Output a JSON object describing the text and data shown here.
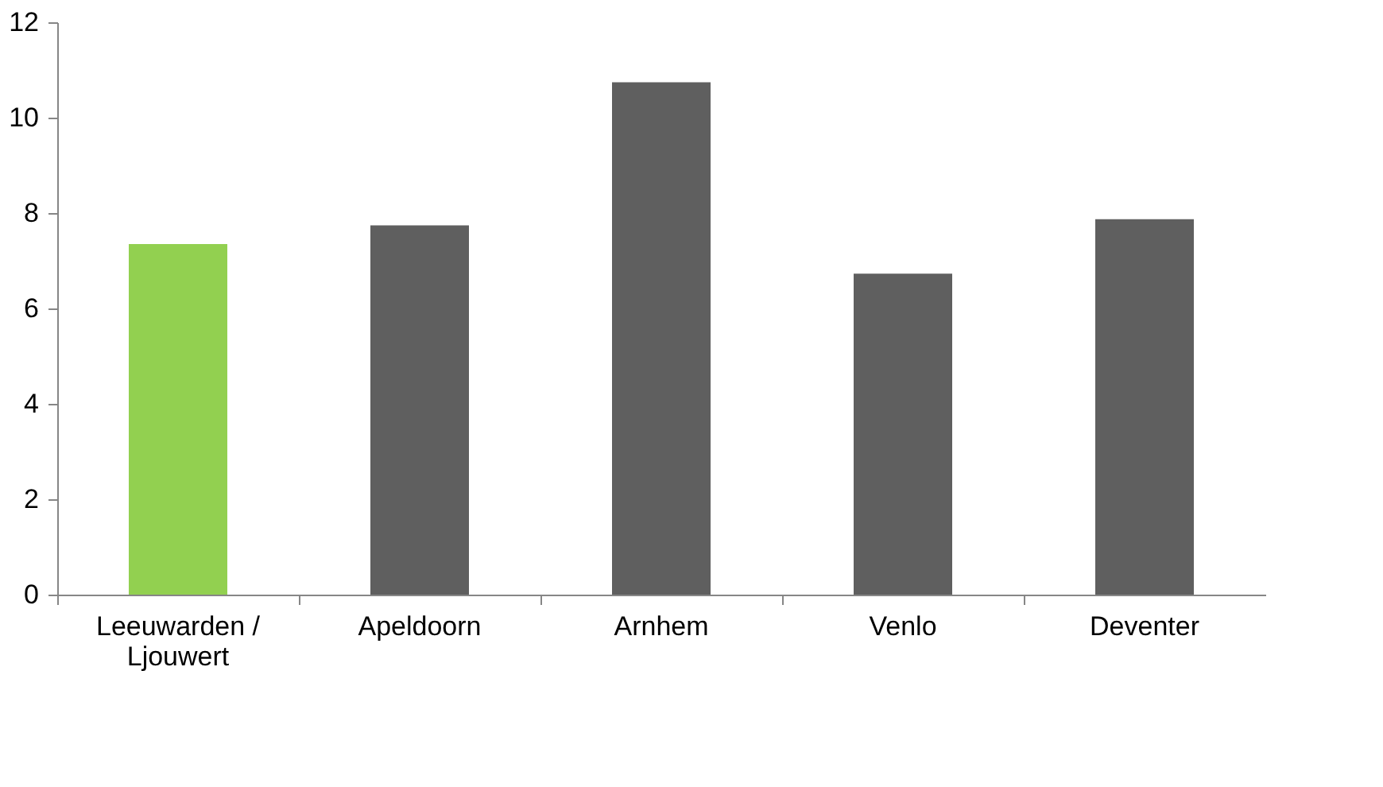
{
  "chart_data": {
    "type": "bar",
    "categories": [
      "Leeuwarden / Ljouwert",
      "Apeldoorn",
      "Arnhem",
      "Venlo",
      "Deventer"
    ],
    "values": [
      7.35,
      7.74,
      10.74,
      6.73,
      7.87
    ],
    "colors": [
      "#92d050",
      "#5f5f5f",
      "#5f5f5f",
      "#5f5f5f",
      "#5f5f5f"
    ],
    "ylim": [
      0,
      12
    ],
    "yticks": [
      0,
      2,
      4,
      6,
      8,
      10,
      12
    ],
    "grid": false
  }
}
